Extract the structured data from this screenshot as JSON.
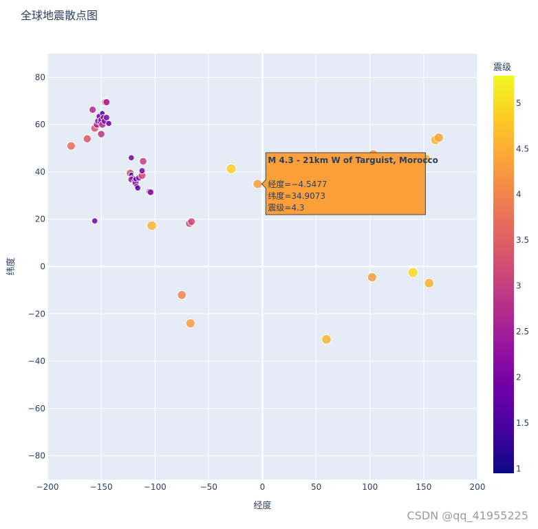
{
  "chart_data": {
    "type": "scatter",
    "title": "全球地震散点图",
    "xlabel": "经度",
    "ylabel": "纬度",
    "xlim": [
      -200,
      200
    ],
    "ylim": [
      -90,
      90
    ],
    "xticks": [
      -200,
      -150,
      -100,
      -50,
      0,
      50,
      100,
      150,
      200
    ],
    "yticks": [
      -80,
      -60,
      -40,
      -20,
      0,
      20,
      40,
      60,
      80
    ],
    "grid": true,
    "colorbar": {
      "title": "震级",
      "range": [
        0.95,
        5.3
      ],
      "ticks": [
        1,
        1.5,
        2,
        2.5,
        3,
        3.5,
        4,
        4.5,
        5
      ],
      "colorscale": [
        "#0d0887",
        "#46039f",
        "#7201a8",
        "#9c179e",
        "#bd3786",
        "#d8576b",
        "#ed7953",
        "#fb9f3a",
        "#fdca26",
        "#f0f921"
      ]
    },
    "points": [
      {
        "x": -178,
        "y": 51,
        "mag": 3.7
      },
      {
        "x": -163,
        "y": 54,
        "mag": 3.4
      },
      {
        "x": -158,
        "y": 66.3,
        "mag": 2.7
      },
      {
        "x": -156,
        "y": 58.5,
        "mag": 3.4
      },
      {
        "x": -154,
        "y": 60,
        "mag": 2.6
      },
      {
        "x": -153,
        "y": 61.5,
        "mag": 2.3
      },
      {
        "x": -152,
        "y": 63.5,
        "mag": 1.8
      },
      {
        "x": -151,
        "y": 61,
        "mag": 1.5
      },
      {
        "x": -150,
        "y": 62,
        "mag": 2.2
      },
      {
        "x": -150,
        "y": 56,
        "mag": 2.9
      },
      {
        "x": -149,
        "y": 64.8,
        "mag": 1.4
      },
      {
        "x": -149,
        "y": 60,
        "mag": 2.7
      },
      {
        "x": -148,
        "y": 63,
        "mag": 1.9
      },
      {
        "x": -147,
        "y": 61.5,
        "mag": 2.1
      },
      {
        "x": -146,
        "y": 69.5,
        "mag": 3.0
      },
      {
        "x": -145,
        "y": 69.5,
        "mag": 2.6
      },
      {
        "x": -145,
        "y": 63,
        "mag": 2.1
      },
      {
        "x": -143,
        "y": 60.5,
        "mag": 1.8
      },
      {
        "x": -122,
        "y": 46,
        "mag": 1.9
      },
      {
        "x": -123,
        "y": 39.5,
        "mag": 3.3
      },
      {
        "x": -122,
        "y": 38.8,
        "mag": 1.0
      },
      {
        "x": -121,
        "y": 37.5,
        "mag": 1.5
      },
      {
        "x": -122,
        "y": 36.8,
        "mag": 2.4
      },
      {
        "x": -119,
        "y": 36,
        "mag": 1.9
      },
      {
        "x": -118,
        "y": 35.3,
        "mag": 2.6
      },
      {
        "x": -117,
        "y": 34,
        "mag": 1.2
      },
      {
        "x": -116,
        "y": 33.2,
        "mag": 1.8
      },
      {
        "x": -118,
        "y": 37,
        "mag": 1.4
      },
      {
        "x": -115,
        "y": 37.5,
        "mag": 2.1
      },
      {
        "x": -112,
        "y": 38.5,
        "mag": 3.2
      },
      {
        "x": -112,
        "y": 40.5,
        "mag": 2.0
      },
      {
        "x": -111,
        "y": 44.5,
        "mag": 3.0
      },
      {
        "x": -105,
        "y": 31.6,
        "mag": 2.5
      },
      {
        "x": -104,
        "y": 31.4,
        "mag": 2.3
      },
      {
        "x": -156,
        "y": 19.3,
        "mag": 1.9
      },
      {
        "x": -103,
        "y": 17.3,
        "mag": 4.6
      },
      {
        "x": -68,
        "y": 18.2,
        "mag": 3.1
      },
      {
        "x": -66,
        "y": 19,
        "mag": 3.2
      },
      {
        "x": -75,
        "y": -12,
        "mag": 4.0
      },
      {
        "x": -67,
        "y": -24,
        "mag": 4.3
      },
      {
        "x": -29,
        "y": 41.3,
        "mag": 4.9
      },
      {
        "x": -4.5477,
        "y": 34.9073,
        "mag": 4.3
      },
      {
        "x": 59.5,
        "y": -30.8,
        "mag": 4.6
      },
      {
        "x": 102,
        "y": -4.5,
        "mag": 4.3
      },
      {
        "x": 103,
        "y": 47.5,
        "mag": 4.2
      },
      {
        "x": 140,
        "y": -2.5,
        "mag": 5.0
      },
      {
        "x": 155,
        "y": -7,
        "mag": 4.5
      },
      {
        "x": 152,
        "y": 45.5,
        "mag": 4.5
      },
      {
        "x": 161,
        "y": 53.5,
        "mag": 4.6
      },
      {
        "x": 164,
        "y": 54.5,
        "mag": 4.4
      }
    ],
    "hover": {
      "title": "M 4.3 - 21km W of Targuist, Morocco",
      "lines": [
        "经度=−4.5477",
        "纬度=34.9073",
        "震级=4.3"
      ],
      "x": -4.5477,
      "y": 34.9073,
      "color": "#fb9f3a"
    }
  },
  "watermark": "CSDN @qq_41955225"
}
